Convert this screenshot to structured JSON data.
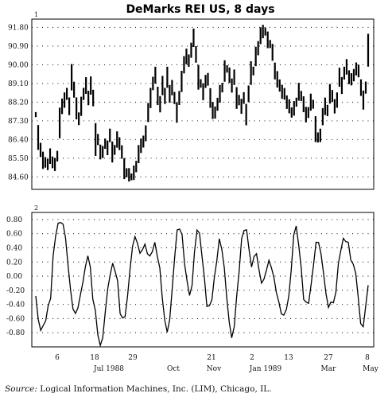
{
  "chart_data": [
    {
      "panel_number": "1",
      "type": "bar",
      "bar_style": "high-low",
      "title": "DeMarks REI US, 8 days",
      "ylim": [
        84.0,
        92.2
      ],
      "yticks": [
        "91.80",
        "90.90",
        "90.00",
        "89.10",
        "88.20",
        "87.30",
        "86.40",
        "85.50",
        "84.60"
      ],
      "grid": true,
      "values": [
        87.6,
        86.5,
        85.9,
        85.4,
        85.3,
        85.2,
        85.6,
        85.3,
        85.2,
        85.6,
        87.2,
        88.0,
        88.3,
        88.6,
        88.0,
        89.4,
        88.8,
        87.9,
        87.4,
        88.0,
        88.6,
        89.0,
        88.4,
        89.0,
        88.4,
        86.4,
        86.4,
        85.8,
        85.8,
        86.2,
        86.0,
        86.6,
        85.8,
        85.9,
        86.4,
        86.2,
        85.8,
        85.0,
        84.8,
        84.7,
        84.6,
        84.8,
        85.1,
        85.7,
        86.1,
        86.3,
        86.7,
        87.7,
        88.4,
        89.1,
        89.5,
        88.5,
        88.1,
        89.0,
        88.5,
        89.4,
        88.6,
        88.9,
        88.4,
        87.7,
        88.4,
        89.2,
        90.0,
        90.4,
        90.2,
        90.7,
        91.3,
        90.5,
        89.4,
        89.1,
        88.7,
        89.2,
        89.3,
        88.4,
        87.8,
        87.7,
        88.1,
        88.6,
        88.9,
        89.7,
        89.8,
        89.5,
        89.0,
        89.4,
        88.4,
        88.3,
        88.0,
        88.4,
        87.6,
        88.6,
        89.6,
        89.7,
        90.4,
        90.8,
        91.4,
        91.6,
        91.6,
        91.2,
        91.0,
        90.6,
        89.7,
        89.3,
        89.0,
        88.7,
        88.6,
        88.2,
        88.0,
        87.7,
        87.9,
        88.2,
        88.7,
        88.5,
        88.1,
        87.6,
        87.7,
        88.2,
        88.1,
        86.9,
        86.5,
        86.6,
        87.5,
        88.0,
        87.8,
        88.6,
        88.5,
        88.0,
        88.3,
        89.4,
        89.0,
        89.6,
        89.9,
        89.4,
        89.3,
        89.5,
        89.8,
        89.7,
        88.9,
        88.3,
        88.9,
        90.7
      ]
    },
    {
      "panel_number": "2",
      "type": "line",
      "ylim": [
        -1.0,
        0.9
      ],
      "yticks": [
        "0.80",
        "0.60",
        "0.40",
        "0.20",
        "0.00",
        "-0.20",
        "-0.40",
        "-0.60",
        "-0.80"
      ],
      "grid": true,
      "x_tick_labels": [
        "6",
        "18",
        "29",
        "Oct",
        "21",
        "Nov",
        "2",
        "Jan 1989",
        "13",
        "27",
        "Mar",
        "8",
        "May"
      ],
      "x_top_labels": [
        "6",
        "18",
        "29",
        "21",
        "2",
        "13",
        "27",
        "8"
      ],
      "x_bottom_labels": [
        "Jul 1988",
        "Oct",
        "Nov",
        "Jan 1989",
        "Mar",
        "May"
      ],
      "values": [
        -0.28,
        -0.62,
        -0.75,
        -0.72,
        -0.6,
        -0.45,
        -0.28,
        0.25,
        0.6,
        0.72,
        0.78,
        0.72,
        0.55,
        0.15,
        -0.2,
        -0.45,
        -0.55,
        -0.42,
        -0.3,
        -0.05,
        0.1,
        0.32,
        0.1,
        -0.3,
        -0.5,
        -0.82,
        -0.98,
        -0.88,
        -0.5,
        -0.2,
        0.05,
        0.15,
        0.1,
        -0.1,
        -0.5,
        -0.62,
        -0.55,
        -0.3,
        0.1,
        0.42,
        0.55,
        0.48,
        0.3,
        0.4,
        0.42,
        0.35,
        0.25,
        0.38,
        0.45,
        0.3,
        0.1,
        -0.3,
        -0.62,
        -0.8,
        -0.6,
        -0.2,
        0.3,
        0.62,
        0.7,
        0.55,
        0.2,
        -0.1,
        -0.25,
        -0.15,
        0.35,
        0.65,
        0.6,
        0.3,
        -0.05,
        -0.4,
        -0.45,
        -0.3,
        -0.05,
        0.25,
        0.5,
        0.4,
        0.1,
        -0.3,
        -0.65,
        -0.88,
        -0.7,
        -0.3,
        0.1,
        0.5,
        0.68,
        0.62,
        0.4,
        0.1,
        0.3,
        0.3,
        0.1,
        -0.1,
        -0.05,
        0.1,
        0.2,
        0.15,
        -0.05,
        -0.2,
        -0.4,
        -0.5,
        -0.58,
        -0.45,
        -0.3,
        0.1,
        0.58,
        0.7,
        0.45,
        0.1,
        -0.3,
        -0.4,
        -0.35,
        -0.15,
        0.2,
        0.45,
        0.5,
        0.3,
        0.05,
        -0.25,
        -0.45,
        -0.35,
        -0.4,
        -0.2,
        0.15,
        0.4,
        0.5,
        0.52,
        0.45,
        0.25,
        0.15,
        0.05,
        -0.3,
        -0.68,
        -0.7,
        -0.45,
        -0.1
      ]
    }
  ],
  "source": {
    "label": "Source:",
    "text": "Logical Information Machines, Inc. (LIM), Chicago, IL."
  }
}
